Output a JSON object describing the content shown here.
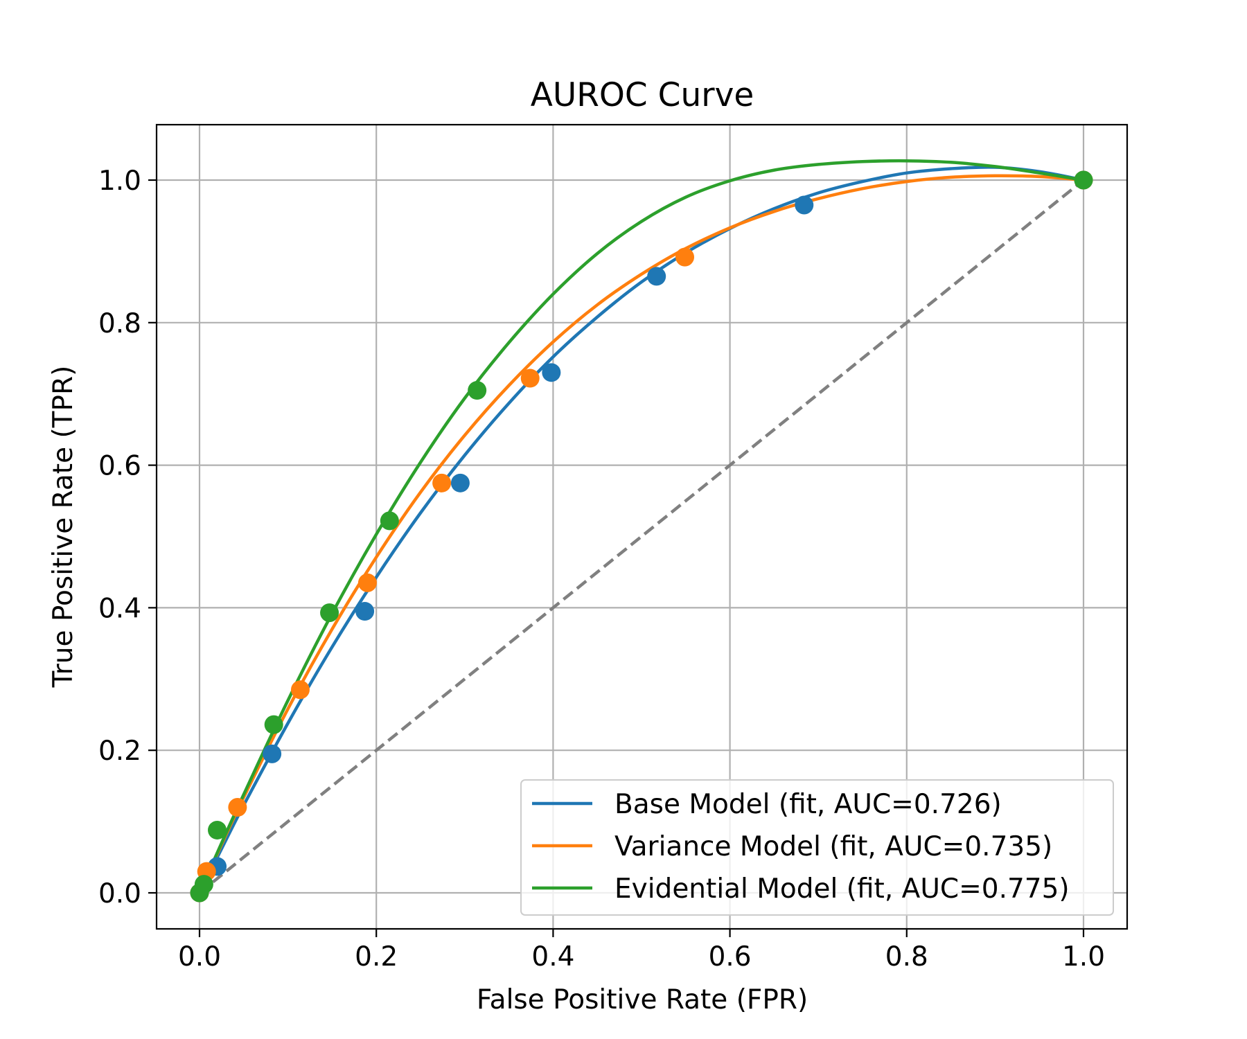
{
  "chart_data": {
    "type": "line",
    "title": "AUROC Curve",
    "xlabel": "False Positive Rate (FPR)",
    "ylabel": "True Positive Rate (TPR)",
    "xlim": [
      -0.05,
      1.05
    ],
    "ylim": [
      -0.05,
      1.08
    ],
    "xticks": [
      0.0,
      0.2,
      0.4,
      0.6,
      0.8,
      1.0
    ],
    "yticks": [
      0.0,
      0.2,
      0.4,
      0.6,
      0.8,
      1.0
    ],
    "xtick_labels": [
      "0.0",
      "0.2",
      "0.4",
      "0.6",
      "0.8",
      "1.0"
    ],
    "ytick_labels": [
      "0.0",
      "0.2",
      "0.4",
      "0.6",
      "0.8",
      "1.0"
    ],
    "grid": true,
    "legend_position": "lower-right",
    "diagonal": {
      "style": "dashed",
      "color": "#808080",
      "points": [
        [
          0,
          0
        ],
        [
          1,
          1
        ]
      ]
    },
    "series": [
      {
        "name": "Base Model (fit, AUC=0.726)",
        "color": "#1f77b4",
        "points": [
          [
            0.0,
            0.0
          ],
          [
            0.02,
            0.037
          ],
          [
            0.082,
            0.195
          ],
          [
            0.187,
            0.395
          ],
          [
            0.295,
            0.575
          ],
          [
            0.398,
            0.73
          ],
          [
            0.517,
            0.865
          ],
          [
            0.684,
            0.965
          ],
          [
            1.0,
            1.0
          ]
        ],
        "fit_curve": [
          [
            0.0,
            0.0
          ],
          [
            0.025,
            0.062
          ],
          [
            0.05,
            0.123
          ],
          [
            0.1,
            0.238
          ],
          [
            0.15,
            0.345
          ],
          [
            0.2,
            0.443
          ],
          [
            0.25,
            0.533
          ],
          [
            0.3,
            0.614
          ],
          [
            0.35,
            0.687
          ],
          [
            0.4,
            0.752
          ],
          [
            0.45,
            0.808
          ],
          [
            0.5,
            0.857
          ],
          [
            0.55,
            0.898
          ],
          [
            0.6,
            0.932
          ],
          [
            0.65,
            0.96
          ],
          [
            0.7,
            0.982
          ],
          [
            0.75,
            0.998
          ],
          [
            0.8,
            1.01
          ],
          [
            0.85,
            1.016
          ],
          [
            0.9,
            1.018
          ],
          [
            0.95,
            1.012
          ],
          [
            1.0,
            1.0
          ]
        ]
      },
      {
        "name": "Variance Model (fit, AUC=0.735)",
        "color": "#ff7f0e",
        "points": [
          [
            0.0,
            0.0
          ],
          [
            0.008,
            0.03
          ],
          [
            0.043,
            0.12
          ],
          [
            0.114,
            0.285
          ],
          [
            0.19,
            0.435
          ],
          [
            0.274,
            0.575
          ],
          [
            0.374,
            0.722
          ],
          [
            0.549,
            0.892
          ],
          [
            1.0,
            1.0
          ]
        ],
        "fit_curve": [
          [
            0.0,
            0.0
          ],
          [
            0.025,
            0.068
          ],
          [
            0.05,
            0.134
          ],
          [
            0.1,
            0.258
          ],
          [
            0.15,
            0.37
          ],
          [
            0.2,
            0.471
          ],
          [
            0.25,
            0.562
          ],
          [
            0.3,
            0.642
          ],
          [
            0.35,
            0.712
          ],
          [
            0.4,
            0.773
          ],
          [
            0.45,
            0.825
          ],
          [
            0.5,
            0.868
          ],
          [
            0.55,
            0.904
          ],
          [
            0.6,
            0.933
          ],
          [
            0.65,
            0.956
          ],
          [
            0.7,
            0.974
          ],
          [
            0.75,
            0.988
          ],
          [
            0.8,
            0.998
          ],
          [
            0.85,
            1.004
          ],
          [
            0.9,
            1.006
          ],
          [
            0.95,
            1.005
          ],
          [
            1.0,
            1.0
          ]
        ]
      },
      {
        "name": "Evidential Model (fit, AUC=0.775)",
        "color": "#2ca02c",
        "points": [
          [
            0.0,
            0.0
          ],
          [
            0.005,
            0.012
          ],
          [
            0.02,
            0.088
          ],
          [
            0.084,
            0.236
          ],
          [
            0.147,
            0.393
          ],
          [
            0.215,
            0.522
          ],
          [
            0.314,
            0.705
          ],
          [
            1.0,
            1.0
          ]
        ],
        "fit_curve": [
          [
            0.0,
            0.0
          ],
          [
            0.025,
            0.07
          ],
          [
            0.05,
            0.138
          ],
          [
            0.1,
            0.27
          ],
          [
            0.15,
            0.392
          ],
          [
            0.2,
            0.503
          ],
          [
            0.25,
            0.604
          ],
          [
            0.3,
            0.694
          ],
          [
            0.35,
            0.772
          ],
          [
            0.4,
            0.84
          ],
          [
            0.45,
            0.897
          ],
          [
            0.5,
            0.942
          ],
          [
            0.55,
            0.976
          ],
          [
            0.6,
            0.999
          ],
          [
            0.65,
            1.014
          ],
          [
            0.7,
            1.022
          ],
          [
            0.75,
            1.026
          ],
          [
            0.8,
            1.027
          ],
          [
            0.85,
            1.025
          ],
          [
            0.9,
            1.019
          ],
          [
            0.95,
            1.01
          ],
          [
            1.0,
            1.0
          ]
        ]
      }
    ]
  }
}
